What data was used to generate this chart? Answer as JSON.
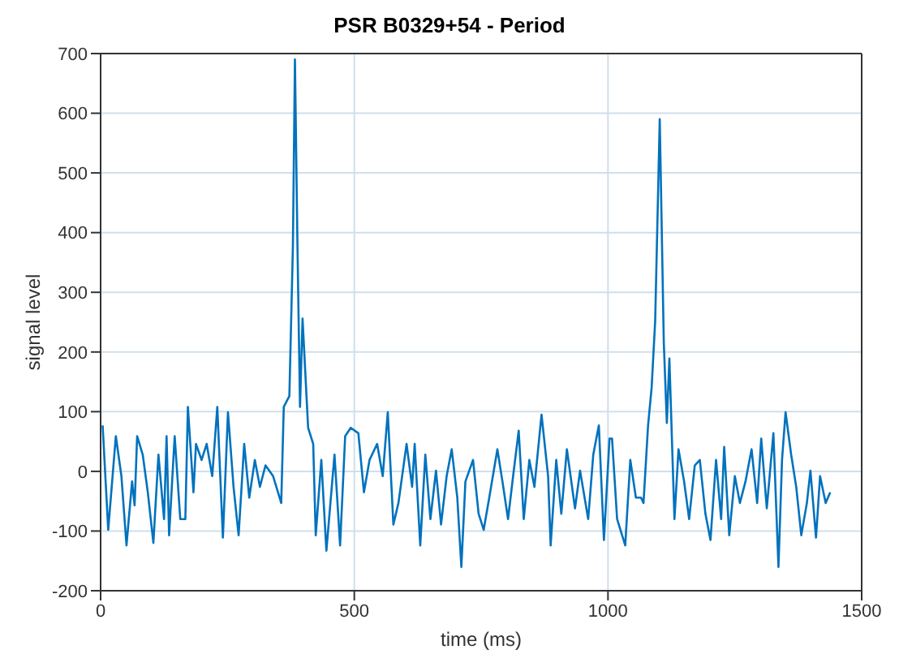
{
  "chart_data": {
    "type": "line",
    "title": "PSR B0329+54 - Period",
    "xlabel": "time (ms)",
    "ylabel": "signal level",
    "xlim": [
      0,
      1500
    ],
    "xticks": [
      0,
      500,
      1000,
      1500
    ],
    "ylim": [
      -200,
      700
    ],
    "yticks": [
      -200,
      -100,
      0,
      100,
      200,
      300,
      400,
      500,
      600,
      700
    ],
    "grid": true,
    "marker": "none",
    "line_style": "solid",
    "series": [
      {
        "color": "#0072bd",
        "x": [
          4,
          15,
          30,
          41,
          51,
          62,
          67,
          72,
          83,
          93,
          104,
          114,
          125,
          130,
          135,
          146,
          157,
          167,
          172,
          183,
          188,
          199,
          209,
          220,
          230,
          241,
          251,
          262,
          272,
          283,
          293,
          304,
          314,
          325,
          340,
          356,
          361,
          372,
          379,
          383,
          388,
          393,
          398,
          409,
          419,
          424,
          435,
          445,
          461,
          472,
          482,
          493,
          508,
          519,
          530,
          545,
          556,
          566,
          577,
          587,
          603,
          614,
          619,
          630,
          640,
          650,
          661,
          671,
          682,
          692,
          703,
          711,
          719,
          734,
          745,
          755,
          766,
          782,
          792,
          803,
          813,
          824,
          834,
          845,
          855,
          869,
          882,
          887,
          898,
          908,
          919,
          935,
          945,
          961,
          971,
          982,
          992,
          1003,
          1008,
          1018,
          1034,
          1044,
          1055,
          1065,
          1070,
          1079,
          1086,
          1093,
          1102,
          1110,
          1116,
          1121,
          1131,
          1139,
          1150,
          1160,
          1171,
          1181,
          1192,
          1202,
          1213,
          1223,
          1229,
          1239,
          1250,
          1260,
          1271,
          1283,
          1294,
          1302,
          1313,
          1326,
          1336,
          1343,
          1350,
          1361,
          1371,
          1381,
          1392,
          1399,
          1410,
          1418,
          1429,
          1438
        ],
        "values": [
          77,
          -98,
          59,
          -8,
          -124,
          -17,
          -57,
          59,
          28,
          -35,
          -120,
          28,
          -80,
          59,
          -107,
          59,
          -80,
          -80,
          108,
          -35,
          46,
          19,
          46,
          -8,
          108,
          -111,
          99,
          -26,
          -107,
          46,
          -44,
          19,
          -26,
          10,
          -8,
          -53,
          108,
          126,
          377,
          690,
          377,
          108,
          256,
          73,
          46,
          -107,
          19,
          -133,
          28,
          -124,
          59,
          73,
          64,
          -35,
          19,
          46,
          -8,
          99,
          -89,
          -53,
          46,
          -26,
          46,
          -124,
          28,
          -80,
          1,
          -89,
          -8,
          37,
          -44,
          -160,
          -17,
          19,
          -71,
          -98,
          -44,
          37,
          -17,
          -80,
          -8,
          68,
          -80,
          19,
          -26,
          95,
          -8,
          -124,
          19,
          -71,
          37,
          -62,
          1,
          -80,
          28,
          77,
          -115,
          55,
          55,
          -80,
          -124,
          19,
          -44,
          -44,
          -53,
          77,
          140,
          252,
          590,
          216,
          81,
          189,
          -80,
          37,
          -17,
          -80,
          10,
          19,
          -71,
          -115,
          19,
          -80,
          41,
          -107,
          -8,
          -53,
          -17,
          37,
          -53,
          55,
          -62,
          64,
          -160,
          19,
          99,
          28,
          -26,
          -107,
          -53,
          1,
          -111,
          -8,
          -53,
          -35
        ]
      }
    ]
  }
}
